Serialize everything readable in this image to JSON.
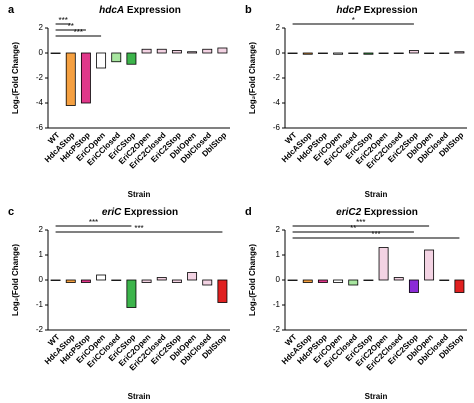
{
  "chart_data": [
    {
      "type": "bar",
      "panel": "a",
      "title_gene": "hdcA",
      "title": "Expression",
      "ylabel": "Log₂(Fold Change)",
      "xlabel": "Strain",
      "categories": [
        "WT",
        "HdcAStop",
        "HdcPStop",
        "EriCOpen",
        "EriCClosed",
        "EriCStop",
        "EriC2Open",
        "EriC2Closed",
        "EriC2Stop",
        "DblOpen",
        "DblClosed",
        "DblStop"
      ],
      "values": [
        0,
        -4.2,
        -4,
        -1.2,
        -0.7,
        -0.9,
        0.3,
        0.3,
        0.2,
        0.1,
        0.3,
        0.4
      ],
      "colors": [
        "#ffffff",
        "#f5a041",
        "#e0388a",
        "#ffffff",
        "#a8e6a0",
        "#3cb44b",
        "#f3d3e3",
        "#f3d3e3",
        "#f3d3e3",
        "#f3d3e3",
        "#f3d3e3",
        "#f3d3e3"
      ],
      "ylim": [
        -6,
        2
      ],
      "yticks": [
        -6,
        -4,
        -2,
        0,
        2
      ],
      "annotations": [
        {
          "text": "***",
          "from": 0,
          "to": 1
        },
        {
          "text": "**",
          "from": 0,
          "to": 2
        },
        {
          "text": "***",
          "from": 0,
          "to": 3
        }
      ]
    },
    {
      "type": "bar",
      "panel": "b",
      "title_gene": "hdcP",
      "title": "Expression",
      "ylabel": "Log₂(Fold Change)",
      "xlabel": "Strain",
      "categories": [
        "WT",
        "HdcAStop",
        "HdcPStop",
        "EriCOpen",
        "EriCClosed",
        "EriCStop",
        "EriC2Open",
        "EriC2Closed",
        "EriC2Stop",
        "DblOpen",
        "DblClosed",
        "DblStop"
      ],
      "values": [
        0,
        -0.1,
        0,
        -0.1,
        0,
        -0.1,
        0,
        0,
        0.2,
        0,
        0,
        0.1
      ],
      "colors": [
        "#ffffff",
        "#f5a041",
        "#e0388a",
        "#ffffff",
        "#a8e6a0",
        "#3cb44b",
        "#f3d3e3",
        "#f3d3e3",
        "#f3d3e3",
        "#f3d3e3",
        "#f3d3e3",
        "#f3d3e3"
      ],
      "ylim": [
        -6,
        2
      ],
      "yticks": [
        -6,
        -4,
        -2,
        0,
        2
      ],
      "annotations": [
        {
          "text": "*",
          "from": 0,
          "to": 8
        }
      ]
    },
    {
      "type": "bar",
      "panel": "c",
      "title_gene": "eriC",
      "title": "Expression",
      "ylabel": "Log₂(Fold Change)",
      "xlabel": "Strain",
      "categories": [
        "WT",
        "HdcAStop",
        "HdcPStop",
        "EriCOpen",
        "EriCClosed",
        "EriCStop",
        "EriC2Open",
        "EriC2Closed",
        "EriC2Stop",
        "DblOpen",
        "DblClosed",
        "DblStop"
      ],
      "values": [
        0,
        -0.1,
        -0.1,
        0.2,
        0,
        -1.1,
        -0.1,
        0.1,
        -0.1,
        0.3,
        -0.2,
        -0.9
      ],
      "colors": [
        "#ffffff",
        "#f5a041",
        "#e0388a",
        "#ffffff",
        "#a8e6a0",
        "#3cb44b",
        "#f3d3e3",
        "#f3d3e3",
        "#f3d3e3",
        "#f3d3e3",
        "#f3d3e3",
        "#e02020"
      ],
      "ylim": [
        -2,
        2
      ],
      "yticks": [
        -2,
        -1,
        0,
        1,
        2
      ],
      "annotations": [
        {
          "text": "***",
          "from": 0,
          "to": 5
        },
        {
          "text": "***",
          "from": 0,
          "to": 11
        }
      ]
    },
    {
      "type": "bar",
      "panel": "d",
      "title_gene": "eriC2",
      "title": "Expression",
      "ylabel": "Log₂(Fold Change)",
      "xlabel": "Strain",
      "categories": [
        "WT",
        "HdcAStop",
        "HdcPStop",
        "EriCOpen",
        "EriCClosed",
        "EriCStop",
        "EriC2Open",
        "EriC2Closed",
        "EriC2Stop",
        "DblOpen",
        "DblClosed",
        "DblStop"
      ],
      "values": [
        0,
        -0.1,
        -0.1,
        -0.1,
        -0.2,
        0,
        1.3,
        0.1,
        -0.5,
        1.2,
        0,
        -0.5
      ],
      "colors": [
        "#ffffff",
        "#f5a041",
        "#e0388a",
        "#ffffff",
        "#a8e6a0",
        "#3cb44b",
        "#f3d3e3",
        "#f3d3e3",
        "#8b2bd6",
        "#f3d3e3",
        "#f3d3e3",
        "#e02020"
      ],
      "ylim": [
        -2,
        2
      ],
      "yticks": [
        -2,
        -1,
        0,
        1,
        2
      ],
      "annotations": [
        {
          "text": "***",
          "from": 0,
          "to": 9
        },
        {
          "text": "**",
          "from": 0,
          "to": 8
        },
        {
          "text": "***",
          "from": 0,
          "to": 11
        }
      ]
    }
  ]
}
